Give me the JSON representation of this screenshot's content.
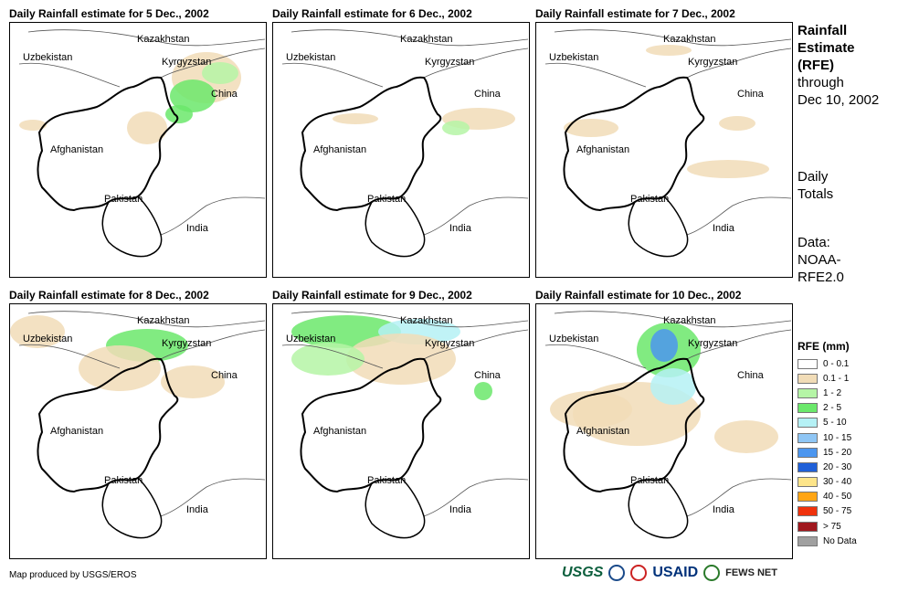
{
  "panels": [
    {
      "title": "Daily Rainfall estimate for 5 Dec., 2002"
    },
    {
      "title": "Daily Rainfall estimate for 6 Dec., 2002"
    },
    {
      "title": "Daily Rainfall estimate for 7 Dec., 2002"
    },
    {
      "title": "Daily Rainfall estimate for 8 Dec., 2002"
    },
    {
      "title": "Daily Rainfall estimate for 9 Dec., 2002"
    },
    {
      "title": "Daily Rainfall estimate for 10 Dec., 2002"
    }
  ],
  "map_labels": {
    "kazakhstan": "Kazakhstan",
    "uzbekistan": "Uzbekistan",
    "kyrgyzstan": "Kyrgyzstan",
    "china": "China",
    "afghanistan": "Afghanistan",
    "pakistan": "Pakistan",
    "india": "India"
  },
  "side": {
    "title_line1": "Rainfall",
    "title_line2": "Estimate",
    "title_line3": "(RFE)",
    "through": "through",
    "date": "Dec 10, 2002",
    "daily1": "Daily",
    "daily2": "Totals",
    "data1": "Data:",
    "data2": "NOAA-",
    "data3": "RFE2.0"
  },
  "legend": {
    "title": "RFE (mm)",
    "items": [
      {
        "label": "0 - 0.1",
        "color": "#ffffff"
      },
      {
        "label": "0.1 - 1",
        "color": "#f1dcb7"
      },
      {
        "label": "1 - 2",
        "color": "#b5f5a6"
      },
      {
        "label": "2 - 5",
        "color": "#6be86b"
      },
      {
        "label": "5 - 10",
        "color": "#b5f1f5"
      },
      {
        "label": "10 - 15",
        "color": "#8fc6f5"
      },
      {
        "label": "15 - 20",
        "color": "#4c96ef"
      },
      {
        "label": "20 - 30",
        "color": "#2060d8"
      },
      {
        "label": "30 - 40",
        "color": "#fde58a"
      },
      {
        "label": "40 - 50",
        "color": "#ffa514"
      },
      {
        "label": "50 - 75",
        "color": "#f0320c"
      },
      {
        "label": "> 75",
        "color": "#a0181e"
      },
      {
        "label": "No Data",
        "color": "#a0a0a0"
      }
    ]
  },
  "credit": "Map produced by USGS/EROS",
  "logos": {
    "usgs": "USGS",
    "usaid": "USAID",
    "fews": "FEWS NET"
  }
}
